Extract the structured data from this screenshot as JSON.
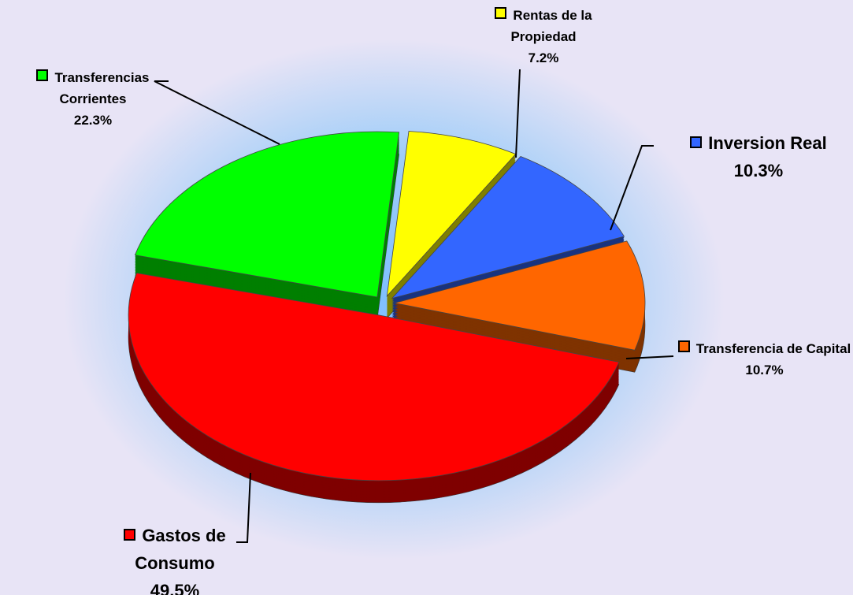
{
  "chart_data": {
    "type": "pie",
    "categories": [
      "Rentas de la Propiedad",
      "Inversion Real",
      "Transferencia de Capital",
      "Gastos de Consumo",
      "Transferencias Corrientes"
    ],
    "values": [
      7.2,
      10.3,
      10.7,
      49.5,
      22.3
    ],
    "value_labels": [
      "7.2%",
      "10.3%",
      "10.7%",
      "49.5%",
      "22.3%"
    ],
    "colors": [
      "#ffff00",
      "#3366ff",
      "#ff6600",
      "#ff0000",
      "#00ff00"
    ]
  }
}
